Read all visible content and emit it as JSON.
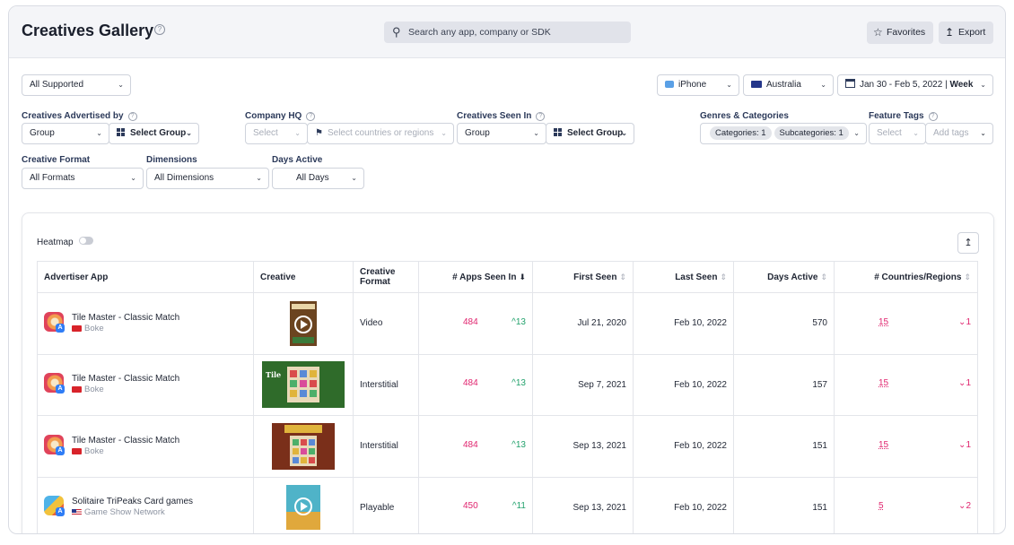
{
  "header": {
    "title": "Creatives Gallery",
    "search_placeholder": "Search any app, company or SDK",
    "favorites_label": "Favorites",
    "export_label": "Export"
  },
  "filters": {
    "supported": "All Supported",
    "device": "iPhone",
    "country": "Australia",
    "date_range": "Jan 30 - Feb 5, 2022",
    "granularity": "Week",
    "advertised_by": {
      "label": "Creatives Advertised by",
      "group": "Group",
      "select_group": "Select Group"
    },
    "company_hq": {
      "label": "Company HQ",
      "select": "Select",
      "countries": "Select countries or regions"
    },
    "seen_in": {
      "label": "Creatives Seen In",
      "group": "Group",
      "select_group": "Select Group"
    },
    "genres": {
      "label": "Genres & Categories",
      "categories": "Categories: 1",
      "subcategories": "Subcategories: 1"
    },
    "feature_tags": {
      "label": "Feature Tags",
      "select": "Select",
      "add_tags": "Add tags"
    },
    "creative_format": {
      "label": "Creative Format",
      "value": "All Formats"
    },
    "dimensions": {
      "label": "Dimensions",
      "value": "All Dimensions"
    },
    "days_active": {
      "label": "Days Active",
      "value": "All Days"
    }
  },
  "table_tools": {
    "heatmap_label": "Heatmap"
  },
  "table": {
    "columns": [
      "Advertiser App",
      "Creative",
      "Creative Format",
      "# Apps Seen In",
      "First Seen",
      "Last Seen",
      "Days Active",
      "# Countries/Regions"
    ],
    "rows": [
      {
        "app": "Tile Master - Classic Match",
        "company": "Boke",
        "format": "Video",
        "apps_seen": "484",
        "apps_delta": "13",
        "first_seen": "Jul 21, 2020",
        "last_seen": "Feb 10, 2022",
        "days_active": "570",
        "countries": "15",
        "countries_delta": "1"
      },
      {
        "app": "Tile Master - Classic Match",
        "company": "Boke",
        "format": "Interstitial",
        "apps_seen": "484",
        "apps_delta": "13",
        "first_seen": "Sep 7, 2021",
        "last_seen": "Feb 10, 2022",
        "days_active": "157",
        "countries": "15",
        "countries_delta": "1"
      },
      {
        "app": "Tile Master - Classic Match",
        "company": "Boke",
        "format": "Interstitial",
        "apps_seen": "484",
        "apps_delta": "13",
        "first_seen": "Sep 13, 2021",
        "last_seen": "Feb 10, 2022",
        "days_active": "151",
        "countries": "15",
        "countries_delta": "1"
      },
      {
        "app": "Solitaire TriPeaks Card games",
        "company": "Game Show Network",
        "format": "Playable",
        "apps_seen": "450",
        "apps_delta": "11",
        "first_seen": "Sep 13, 2021",
        "last_seen": "Feb 10, 2022",
        "days_active": "151",
        "countries": "5",
        "countries_delta": "2"
      }
    ]
  },
  "colors": {
    "pink": "#e0246e",
    "green": "#23a26d",
    "header_bg": "#f4f5f8"
  }
}
